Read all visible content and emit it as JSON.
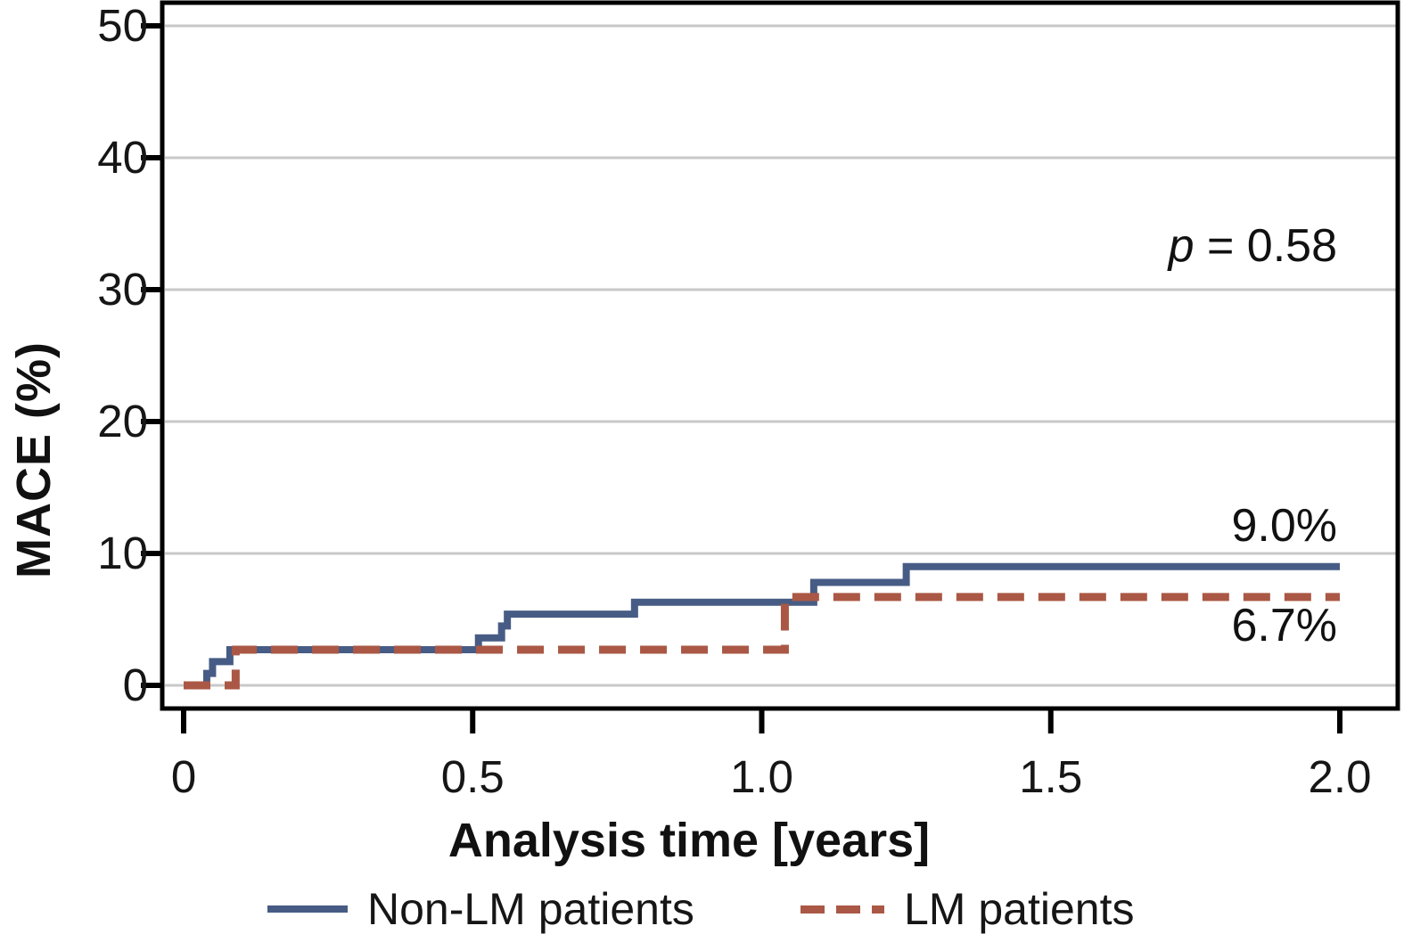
{
  "chart_data": {
    "type": "line",
    "subtype": "kaplan-meier-cumulative-incidence-steps",
    "title": "",
    "xlabel": "Analysis time [years]",
    "ylabel": "MACE (%)",
    "xlim": [
      0,
      2.0
    ],
    "ylim": [
      0,
      50
    ],
    "grid": "horizontal",
    "grid_color": "#c8c8c8",
    "frame_color": "#000000",
    "x_ticks": [
      {
        "value": 0,
        "label": "0"
      },
      {
        "value": 0.5,
        "label": "0.5"
      },
      {
        "value": 1.0,
        "label": "1.0"
      },
      {
        "value": 1.5,
        "label": "1.5"
      },
      {
        "value": 2.0,
        "label": "2.0"
      }
    ],
    "y_ticks": [
      {
        "value": 0,
        "label": "0"
      },
      {
        "value": 10,
        "label": "10"
      },
      {
        "value": 20,
        "label": "20"
      },
      {
        "value": 30,
        "label": "30"
      },
      {
        "value": 40,
        "label": "40"
      },
      {
        "value": 50,
        "label": "50"
      }
    ],
    "series": [
      {
        "name": "Non-LM patients",
        "color": "#475c85",
        "style": "solid",
        "final_value_label": "9.0%",
        "steps": [
          [
            0,
            0
          ],
          [
            0.04,
            0.9
          ],
          [
            0.05,
            1.8
          ],
          [
            0.08,
            2.7
          ],
          [
            0.51,
            3.6
          ],
          [
            0.55,
            4.5
          ],
          [
            0.56,
            5.4
          ],
          [
            0.78,
            6.3
          ],
          [
            1.09,
            7.8
          ],
          [
            1.25,
            9.0
          ]
        ],
        "end_x": 2.0
      },
      {
        "name": "LM patients",
        "color": "#aa5845",
        "style": "dashed",
        "final_value_label": "6.7%",
        "steps": [
          [
            0,
            0
          ],
          [
            0.09,
            2.7
          ],
          [
            1.04,
            6.7
          ]
        ],
        "end_x": 2.0
      }
    ],
    "annotations": {
      "p_symbol": "p",
      "p_rest": " = 0.58",
      "final_blue": "9.0%",
      "final_red": "6.7%"
    },
    "legend": {
      "position": "bottom",
      "items": [
        {
          "label": "Non-LM patients",
          "style": "solid",
          "color": "#475c85"
        },
        {
          "label": "LM patients",
          "style": "dashed",
          "color": "#aa5845"
        }
      ]
    }
  }
}
